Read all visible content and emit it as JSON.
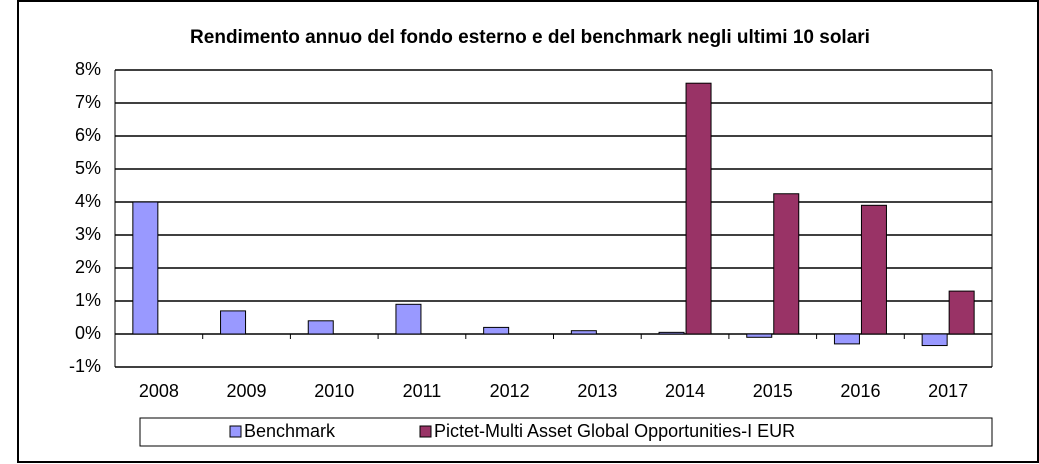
{
  "chart_data": {
    "type": "bar",
    "title": "Rendimento annuo del fondo esterno e del benchmark negli ultimi 10 solari",
    "categories": [
      "2008",
      "2009",
      "2010",
      "2011",
      "2012",
      "2013",
      "2014",
      "2015",
      "2016",
      "2017"
    ],
    "series": [
      {
        "name": "Benchmark",
        "color": "#9999ff",
        "values": [
          4.0,
          0.7,
          0.4,
          0.9,
          0.2,
          0.1,
          0.05,
          -0.1,
          -0.3,
          -0.35
        ]
      },
      {
        "name": "Pictet-Multi Asset Global Opportunities-I EUR",
        "color": "#993366",
        "values": [
          null,
          null,
          null,
          null,
          null,
          null,
          7.6,
          4.25,
          3.9,
          1.3
        ]
      }
    ],
    "ylim": [
      -1,
      8
    ],
    "yticks": [
      {
        "value": -1,
        "label": "-1%"
      },
      {
        "value": 0,
        "label": "0%"
      },
      {
        "value": 1,
        "label": "1%"
      },
      {
        "value": 2,
        "label": "2%"
      },
      {
        "value": 3,
        "label": "3%"
      },
      {
        "value": 4,
        "label": "4%"
      },
      {
        "value": 5,
        "label": "5%"
      },
      {
        "value": 6,
        "label": "6%"
      },
      {
        "value": 7,
        "label": "7%"
      },
      {
        "value": 8,
        "label": "8%"
      }
    ],
    "grid": true,
    "legend": "bottom"
  }
}
